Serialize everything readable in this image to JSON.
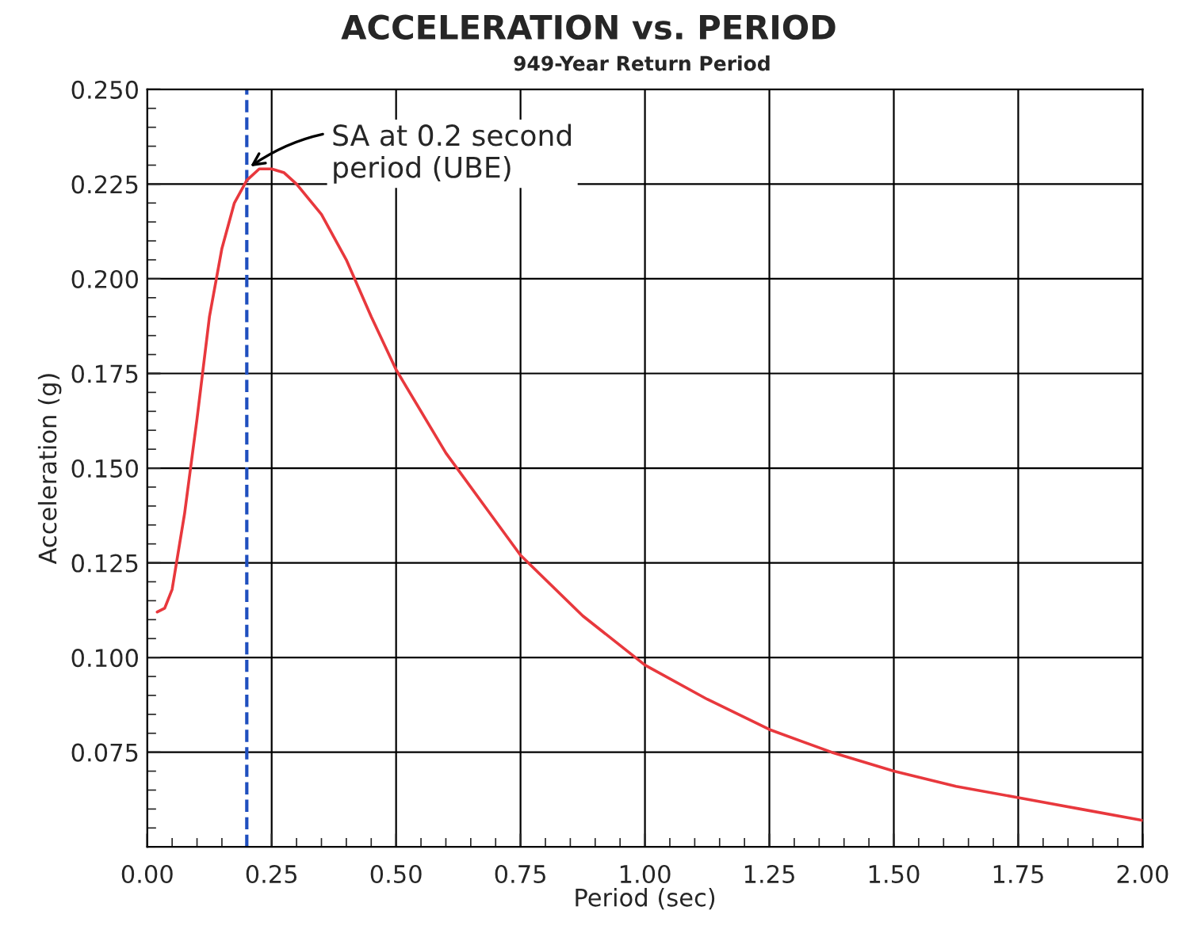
{
  "chart_data": {
    "type": "line",
    "title": "ACCELERATION vs. PERIOD",
    "subtitle": "949-Year Return Period",
    "xlabel": "Period (sec)",
    "ylabel": "Acceleration (g)",
    "series": [
      {
        "color": "#e8383d",
        "x": [
          0.02,
          0.035,
          0.05,
          0.075,
          0.1,
          0.125,
          0.15,
          0.175,
          0.2,
          0.225,
          0.25,
          0.275,
          0.3,
          0.35,
          0.4,
          0.45,
          0.5,
          0.6,
          0.7,
          0.75,
          0.875,
          1.0,
          1.125,
          1.25,
          1.375,
          1.5,
          1.625,
          1.75,
          1.875,
          2.0
        ],
        "values": [
          0.112,
          0.113,
          0.118,
          0.138,
          0.163,
          0.19,
          0.208,
          0.22,
          0.226,
          0.229,
          0.229,
          0.228,
          0.225,
          0.217,
          0.205,
          0.19,
          0.176,
          0.154,
          0.136,
          0.127,
          0.111,
          0.098,
          0.089,
          0.081,
          0.075,
          0.07,
          0.066,
          0.063,
          0.06,
          0.057
        ]
      }
    ],
    "xlim": [
      0,
      2
    ],
    "xticks": [
      {
        "value": 0,
        "label": "0.00"
      },
      0.25,
      {
        "value": 0.5,
        "label": "0.50"
      },
      0.75,
      {
        "value": 1,
        "label": "1.00"
      },
      1.25,
      {
        "value": 1.5,
        "label": "1.50"
      },
      1.75,
      {
        "value": 2,
        "label": "2.00"
      }
    ],
    "ylim": [
      0.05,
      0.25
    ],
    "yticks": [
      {
        "value": 0.075,
        "label": "0.075"
      },
      {
        "value": 0.1,
        "label": "0.100"
      },
      {
        "value": 0.125,
        "label": "0.125"
      },
      {
        "value": 0.15,
        "label": "0.150"
      },
      {
        "value": 0.175,
        "label": "0.175"
      },
      {
        "value": 0.2,
        "label": "0.200"
      },
      {
        "value": 0.225,
        "label": "0.225"
      },
      {
        "value": 0.25,
        "label": "0.250"
      }
    ],
    "ref_lines": [
      {
        "axis": "x",
        "value": 0.2,
        "color": "#1f4fbf",
        "line_style": "dashed"
      }
    ],
    "annotations": [
      {
        "text": "SA at 0.2 second\nperiod (UBE)",
        "x": 0.2,
        "y": 0.229
      }
    ],
    "grid": true,
    "marker": "none",
    "line_style": "solid"
  }
}
